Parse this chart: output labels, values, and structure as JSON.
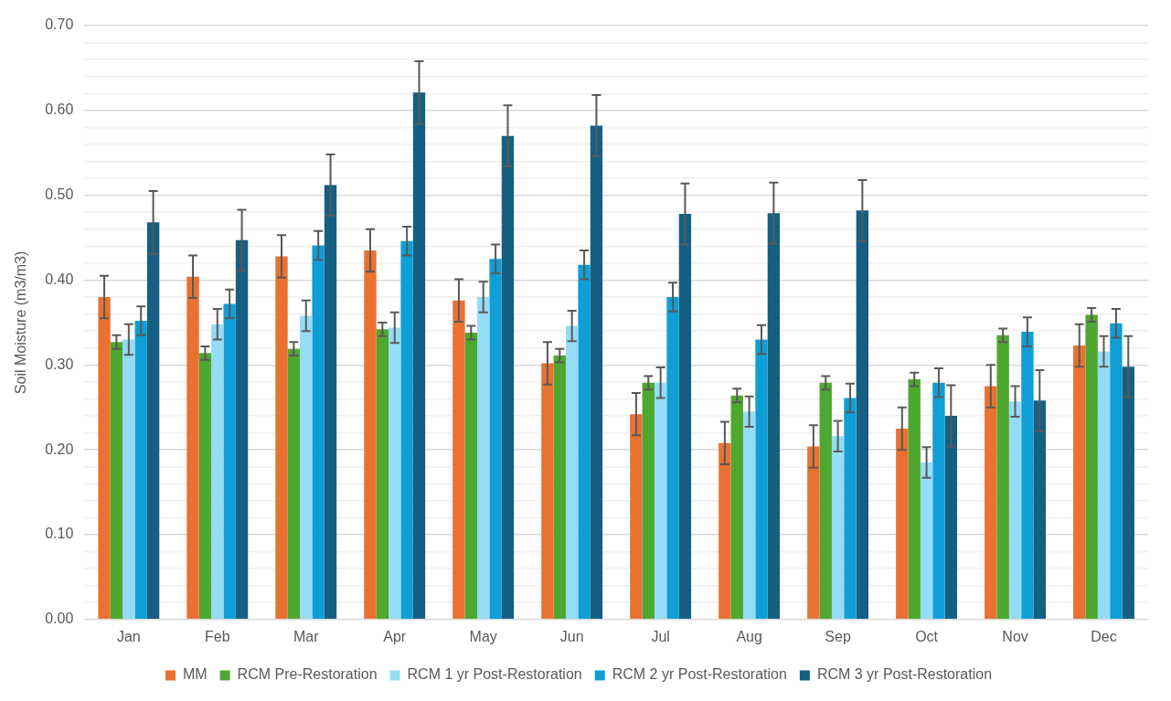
{
  "chart_data": {
    "type": "bar",
    "ylabel": "Soil Moisture (m3/m3)",
    "categories": [
      "Jan",
      "Feb",
      "Mar",
      "Apr",
      "May",
      "Jun",
      "Jul",
      "Aug",
      "Sep",
      "Oct",
      "Nov",
      "Dec"
    ],
    "series": [
      {
        "name": "MM",
        "color": "#e97132",
        "values": [
          0.38,
          0.404,
          0.428,
          0.435,
          0.376,
          0.302,
          0.242,
          0.208,
          0.204,
          0.225,
          0.275,
          0.323
        ],
        "errors": [
          0.025,
          0.025,
          0.025,
          0.025,
          0.025,
          0.025,
          0.025,
          0.025,
          0.025,
          0.025,
          0.025,
          0.025
        ]
      },
      {
        "name": "RCM Pre-Restoration",
        "color": "#4ea72e",
        "values": [
          0.327,
          0.314,
          0.319,
          0.342,
          0.338,
          0.311,
          0.279,
          0.264,
          0.279,
          0.283,
          0.335,
          0.359
        ],
        "errors": [
          0.008,
          0.008,
          0.008,
          0.008,
          0.008,
          0.008,
          0.008,
          0.008,
          0.008,
          0.008,
          0.008,
          0.008
        ]
      },
      {
        "name": "RCM 1 yr Post-Restoration",
        "color": "#95dcf7",
        "values": [
          0.33,
          0.348,
          0.358,
          0.344,
          0.38,
          0.346,
          0.279,
          0.245,
          0.216,
          0.185,
          0.257,
          0.316
        ],
        "errors": [
          0.018,
          0.018,
          0.018,
          0.018,
          0.018,
          0.018,
          0.018,
          0.018,
          0.018,
          0.018,
          0.018,
          0.018
        ]
      },
      {
        "name": "RCM 2 yr Post-Restoration",
        "color": "#0f9ed5",
        "values": [
          0.352,
          0.372,
          0.441,
          0.446,
          0.425,
          0.418,
          0.38,
          0.33,
          0.261,
          0.279,
          0.339,
          0.349
        ],
        "errors": [
          0.017,
          0.017,
          0.017,
          0.017,
          0.017,
          0.017,
          0.017,
          0.017,
          0.017,
          0.017,
          0.017,
          0.017
        ]
      },
      {
        "name": "RCM 3 yr Post-Restoration",
        "color": "#156082",
        "values": [
          0.468,
          0.447,
          0.512,
          0.621,
          0.57,
          0.582,
          0.478,
          0.479,
          0.482,
          0.24,
          0.258,
          0.298
        ],
        "errors": [
          0.037,
          0.036,
          0.036,
          0.037,
          0.036,
          0.036,
          0.036,
          0.036,
          0.036,
          0.036,
          0.036,
          0.036
        ]
      }
    ],
    "ylim": [
      0,
      0.7
    ],
    "yticks": [
      {
        "value": 0,
        "label": "0.00"
      },
      {
        "value": 0.02,
        "label": null
      },
      {
        "value": 0.04,
        "label": null
      },
      {
        "value": 0.06,
        "label": null
      },
      {
        "value": 0.08,
        "label": null
      },
      {
        "value": 0.1,
        "label": "0.10"
      },
      {
        "value": 0.12,
        "label": null
      },
      {
        "value": 0.14,
        "label": null
      },
      {
        "value": 0.16,
        "label": null
      },
      {
        "value": 0.18,
        "label": null
      },
      {
        "value": 0.2,
        "label": "0.20"
      },
      {
        "value": 0.22,
        "label": null
      },
      {
        "value": 0.24,
        "label": null
      },
      {
        "value": 0.26,
        "label": null
      },
      {
        "value": 0.28,
        "label": null
      },
      {
        "value": 0.3,
        "label": "0.30"
      },
      {
        "value": 0.32,
        "label": null
      },
      {
        "value": 0.34,
        "label": null
      },
      {
        "value": 0.36,
        "label": null
      },
      {
        "value": 0.38,
        "label": null
      },
      {
        "value": 0.4,
        "label": "0.40"
      },
      {
        "value": 0.42,
        "label": null
      },
      {
        "value": 0.44,
        "label": null
      },
      {
        "value": 0.46,
        "label": null
      },
      {
        "value": 0.48,
        "label": null
      },
      {
        "value": 0.5,
        "label": "0.50"
      },
      {
        "value": 0.52,
        "label": null
      },
      {
        "value": 0.54,
        "label": null
      },
      {
        "value": 0.56,
        "label": null
      },
      {
        "value": 0.58,
        "label": null
      },
      {
        "value": 0.6,
        "label": "0.60"
      },
      {
        "value": 0.62,
        "label": null
      },
      {
        "value": 0.64,
        "label": null
      },
      {
        "value": 0.66,
        "label": null
      },
      {
        "value": 0.68,
        "label": null
      },
      {
        "value": 0.7,
        "label": "0.70"
      }
    ],
    "grid": "y",
    "legend": "bottom"
  }
}
